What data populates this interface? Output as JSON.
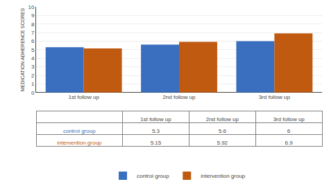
{
  "chart_data": [
    {
      "type": "bar",
      "categories": [
        "1st follow up",
        "2nd follow up",
        "3rd follow up"
      ],
      "series": [
        {
          "name": "control group",
          "color": "#3A6FBF",
          "values": [
            5.3,
            5.6,
            6.0
          ]
        },
        {
          "name": "intervention group",
          "color": "#C05A10",
          "values": [
            5.15,
            5.92,
            6.9
          ]
        }
      ],
      "ylabel": "MEDICATION ADHERENCE SCORES",
      "ylim": [
        0,
        10
      ],
      "yticks": [
        0,
        1,
        2,
        3,
        4,
        5,
        6,
        7,
        8,
        9,
        10
      ],
      "grid": true,
      "legend": "bottom"
    },
    {
      "type": "table",
      "categories": [
        "1st follow up",
        "2nd follow up",
        "3rd follow up"
      ],
      "series": [
        {
          "name": "control group",
          "color": "#3A6FBF",
          "values": [
            5.3,
            5.6,
            6
          ]
        },
        {
          "name": "intervention group",
          "color": "#C05A10",
          "values": [
            5.15,
            5.92,
            6.9
          ]
        }
      ]
    }
  ]
}
